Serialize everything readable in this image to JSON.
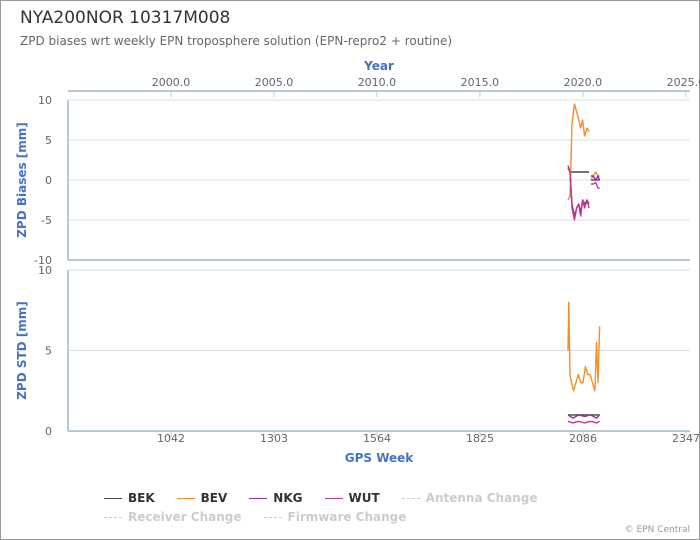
{
  "header": {
    "title": "NYA200NOR 10317M008",
    "subtitle": "ZPD biases wrt weekly EPN troposphere solution (EPN-repro2 + routine)"
  },
  "credits": "© EPN Central",
  "colors": {
    "BEK": "#434348",
    "BEV": "#f28f2b",
    "NKG": "#8e2f9e",
    "WUT": "#c0398c",
    "axis_title": "#4572c4",
    "grid": "#d8dde6",
    "axis_line": "#b7cbd6"
  },
  "chart_data": [
    {
      "type": "line",
      "name": "zpd-biases",
      "xlabel": "GPS Week",
      "x_top_label": "Year",
      "x_top_ticks": [
        "2000.0",
        "2005.0",
        "2010.0",
        "2015.0",
        "2020.0",
        "2025.0"
      ],
      "x_top_tick_values": [
        2000.0,
        2005.0,
        2010.0,
        2015.0,
        2020.0,
        2025.0
      ],
      "ylabel": "ZPD Biases [mm]",
      "yticks": [
        10,
        5,
        0,
        -5,
        -10
      ],
      "ylim": [
        -10,
        10
      ],
      "xlim": [
        781,
        2357
      ],
      "grid": true,
      "series": [
        {
          "name": "BEK",
          "color": "#434348",
          "segments": [
            {
              "x": [
                2055,
                2101
              ],
              "y": [
                1.0,
                1.0
              ]
            },
            {
              "x": [
                2106,
                2128
              ],
              "y": [
                0.0,
                0.0
              ]
            }
          ]
        },
        {
          "name": "BEV",
          "color": "#f28f2b",
          "segments": [
            {
              "x": [
                2048,
                2053,
                2058,
                2064,
                2070,
                2075,
                2080,
                2085,
                2090,
                2096,
                2101
              ],
              "y": [
                -2.5,
                -2.0,
                7.0,
                9.5,
                8.5,
                7.5,
                6.5,
                7.5,
                5.5,
                6.5,
                6.0
              ]
            },
            {
              "x": [
                2106,
                2112,
                2118,
                2124,
                2128
              ],
              "y": [
                0.0,
                0.5,
                1.0,
                0.5,
                0.5
              ]
            }
          ]
        },
        {
          "name": "NKG",
          "color": "#8e2f9e",
          "segments": [
            {
              "x": [
                2048,
                2053,
                2058,
                2064,
                2070,
                2075,
                2080,
                2085,
                2090,
                2096,
                2101
              ],
              "y": [
                1.8,
                1.0,
                -3.0,
                -4.5,
                -3.5,
                -3.0,
                -4.0,
                -2.5,
                -3.0,
                -2.5,
                -3.0
              ]
            },
            {
              "x": [
                2106,
                2112,
                2118,
                2124,
                2128
              ],
              "y": [
                0.5,
                0.5,
                0.0,
                0.5,
                0.0
              ]
            }
          ]
        },
        {
          "name": "WUT",
          "color": "#c0398c",
          "segments": [
            {
              "x": [
                2048,
                2053,
                2058,
                2064,
                2070,
                2075,
                2080,
                2085,
                2090,
                2096,
                2101
              ],
              "y": [
                1.5,
                1.0,
                -3.5,
                -5.0,
                -3.5,
                -3.0,
                -4.5,
                -2.5,
                -3.5,
                -2.5,
                -3.5
              ]
            },
            {
              "x": [
                2106,
                2112,
                2118,
                2124,
                2128
              ],
              "y": [
                -0.5,
                -0.5,
                -0.3,
                -1.0,
                -1.0
              ]
            }
          ]
        }
      ]
    },
    {
      "type": "line",
      "name": "zpd-std",
      "xlabel": "GPS Week",
      "ylabel": "ZPD STD [mm]",
      "xticks": [
        1042,
        1303,
        1564,
        1825,
        2086,
        2347
      ],
      "yticks": [
        10,
        5,
        0
      ],
      "ylim": [
        0,
        10
      ],
      "xlim": [
        781,
        2357
      ],
      "grid": true,
      "series": [
        {
          "name": "BEK",
          "color": "#434348",
          "segments": [
            {
              "x": [
                2048,
                2128
              ],
              "y": [
                1.0,
                1.0
              ]
            }
          ]
        },
        {
          "name": "BEV",
          "color": "#f28f2b",
          "segments": [
            {
              "x": [
                2048,
                2050,
                2053,
                2057,
                2062,
                2068,
                2074,
                2080,
                2086,
                2092,
                2098,
                2104,
                2110,
                2116,
                2120,
                2124,
                2128
              ],
              "y": [
                5.0,
                8.0,
                3.5,
                3.0,
                2.5,
                3.0,
                3.5,
                3.0,
                3.0,
                4.0,
                3.5,
                3.5,
                3.0,
                2.5,
                5.5,
                3.0,
                6.5
              ]
            }
          ]
        },
        {
          "name": "NKG",
          "color": "#8e2f9e",
          "segments": [
            {
              "x": [
                2048,
                2060,
                2075,
                2090,
                2105,
                2120,
                2128
              ],
              "y": [
                1.0,
                0.8,
                1.0,
                0.9,
                1.0,
                0.8,
                1.0
              ]
            }
          ]
        },
        {
          "name": "WUT",
          "color": "#c0398c",
          "segments": [
            {
              "x": [
                2048,
                2060,
                2075,
                2090,
                2105,
                2120,
                2128
              ],
              "y": [
                0.6,
                0.5,
                0.6,
                0.5,
                0.6,
                0.5,
                0.6
              ]
            }
          ]
        }
      ]
    }
  ],
  "legend": [
    {
      "label": "BEK",
      "color": "#434348",
      "style": "solid",
      "text_color": "#333333"
    },
    {
      "label": "BEV",
      "color": "#f28f2b",
      "style": "solid",
      "text_color": "#333333"
    },
    {
      "label": "NKG",
      "color": "#8e2f9e",
      "style": "solid",
      "text_color": "#333333"
    },
    {
      "label": "WUT",
      "color": "#c0398c",
      "style": "solid",
      "text_color": "#333333"
    },
    {
      "label": "Antenna Change",
      "color": "#cccccc",
      "style": "dashed",
      "text_color": "#cccccc"
    },
    {
      "label": "Receiver Change",
      "color": "#cccccc",
      "style": "dashed",
      "text_color": "#cccccc"
    },
    {
      "label": "Firmware Change",
      "color": "#cccccc",
      "style": "dashed",
      "text_color": "#cccccc"
    }
  ]
}
